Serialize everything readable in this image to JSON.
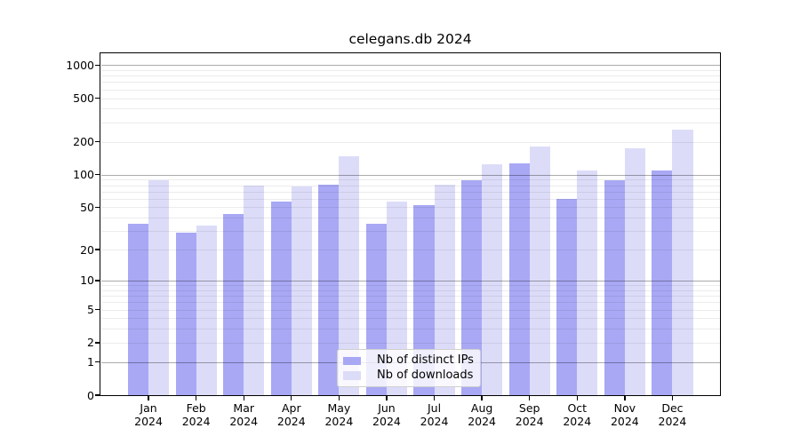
{
  "chart_data": {
    "type": "bar",
    "title": "celegans.db 2024",
    "x_tick_line1": [
      "Jan",
      "Feb",
      "Mar",
      "Apr",
      "May",
      "Jun",
      "Jul",
      "Aug",
      "Sep",
      "Oct",
      "Nov",
      "Dec"
    ],
    "x_tick_line2": "2024",
    "series": [
      {
        "name": "Nb of distinct IPs",
        "color": "#a8a8f5",
        "values": [
          35,
          29,
          43,
          57,
          81,
          35,
          52,
          88,
          127,
          60,
          88,
          110
        ]
      },
      {
        "name": "Nb of downloads",
        "color": "#dcdcf9",
        "values": [
          88,
          34,
          79,
          78,
          148,
          57,
          81,
          124,
          180,
          110,
          175,
          258
        ]
      }
    ],
    "y_scale": "log10(1+y)",
    "ylim": [
      0,
      1280
    ],
    "y_ticks": [
      1000,
      500,
      200,
      100,
      50,
      20,
      10,
      5,
      2,
      1,
      0
    ],
    "y_major_grid": [
      1,
      10,
      100,
      1000
    ],
    "y_minor_grid": [
      2,
      3,
      4,
      5,
      6,
      7,
      8,
      9,
      20,
      30,
      40,
      50,
      60,
      70,
      80,
      90,
      200,
      300,
      400,
      500,
      600,
      700,
      800,
      900
    ],
    "grid": true,
    "legend_position": "lower center",
    "colors": {
      "axis": "#000000",
      "major_grid": "#b0b0b0",
      "minor_grid": "#ececec",
      "legend_border": "#cfcfcf"
    }
  }
}
